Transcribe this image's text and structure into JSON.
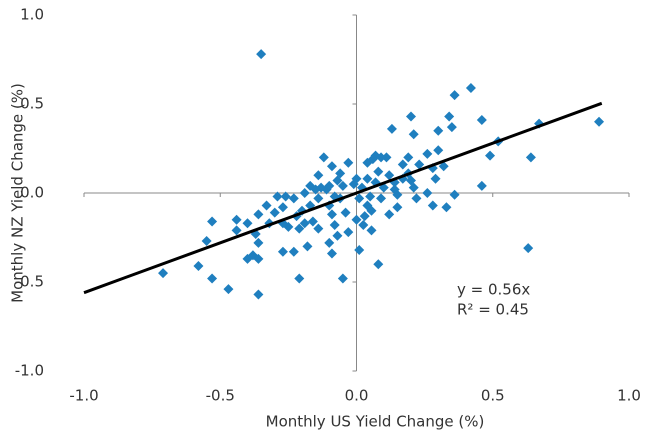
{
  "chart_data": {
    "type": "scatter",
    "x_label": "Monthly US Yield Change (%)",
    "y_label": "Monthly NZ Yield Change (%)",
    "xlim": [
      -1,
      1
    ],
    "ylim": [
      -1,
      1
    ],
    "xticks": [
      {
        "value": -1,
        "label": "-1.0"
      },
      {
        "value": -0.5,
        "label": "-0.5"
      },
      {
        "value": 0,
        "label": "0.0"
      },
      {
        "value": 0.5,
        "label": "0.5"
      },
      {
        "value": 1,
        "label": "1.0"
      }
    ],
    "yticks": [
      {
        "value": -1,
        "label": "-1.0"
      },
      {
        "value": -0.5,
        "label": "-0.5"
      },
      {
        "value": 0,
        "label": "0.0"
      },
      {
        "value": 0.5,
        "label": "0.5"
      },
      {
        "value": 1,
        "label": "1.0"
      }
    ],
    "grid": false,
    "series": [
      {
        "color": "#1f7fbf",
        "x": [
          -0.35,
          0.89,
          0.67,
          0.42,
          0.36,
          0.46,
          0.35,
          0.34,
          0.3,
          0.2,
          0.21,
          0.13,
          0.52,
          0.49,
          0.64,
          0.63,
          0.46,
          0.36,
          0.33,
          0.28,
          0.3,
          0.32,
          0.26,
          0.23,
          0.19,
          0.17,
          0.11,
          0.09,
          0.07,
          0.06,
          0.04,
          0.08,
          0.12,
          0.14,
          0.17,
          0.2,
          0.21,
          0.15,
          0.15,
          0.1,
          0.07,
          0.05,
          0.04,
          0.055,
          0.03,
          0.025,
          0.01,
          0.08,
          0.02,
          0.0,
          -0.03,
          -0.05,
          -0.07,
          -0.08,
          -0.1,
          -0.09,
          -0.08,
          -0.04,
          -0.07,
          -0.05,
          -0.09,
          -0.12,
          -0.09,
          -0.14,
          -0.13,
          -0.15,
          -0.17,
          -0.19,
          -0.17,
          -0.2,
          -0.22,
          -0.21,
          -0.25,
          -0.27,
          -0.27,
          -0.29,
          -0.3,
          -0.33,
          -0.32,
          -0.36,
          -0.37,
          -0.36,
          -0.38,
          -0.36,
          -0.4,
          -0.36,
          -0.47,
          -0.53,
          -0.58,
          -0.71,
          -0.55,
          -0.53,
          -0.44,
          -0.44,
          -0.4,
          -0.27,
          -0.23,
          -0.21,
          -0.18,
          -0.26,
          -0.23,
          -0.14,
          -0.11,
          -0.1,
          -0.01,
          -0.06,
          0.01,
          0.09,
          0.12,
          0.22,
          0.26,
          0.0,
          -0.03,
          0.055,
          -0.14,
          -0.16,
          -0.19,
          -0.1,
          -0.06,
          0.04,
          0.14,
          0.19,
          0.28,
          0.29
        ],
        "y": [
          0.78,
          0.4,
          0.39,
          0.59,
          0.55,
          0.41,
          0.37,
          0.43,
          0.35,
          0.43,
          0.33,
          0.36,
          0.29,
          0.21,
          0.2,
          -0.31,
          0.04,
          -0.01,
          -0.08,
          -0.07,
          0.24,
          0.15,
          0.22,
          0.16,
          0.2,
          0.16,
          0.2,
          0.2,
          0.21,
          0.19,
          0.17,
          0.12,
          0.1,
          0.06,
          0.08,
          0.07,
          0.03,
          -0.01,
          -0.08,
          0.03,
          0.06,
          -0.02,
          -0.07,
          -0.1,
          -0.13,
          -0.18,
          -0.32,
          -0.4,
          0.03,
          0.08,
          0.17,
          0.04,
          0.07,
          -0.02,
          -0.07,
          -0.12,
          -0.18,
          -0.11,
          -0.24,
          -0.48,
          -0.34,
          0.2,
          0.15,
          0.1,
          0.03,
          0.02,
          0.04,
          0.0,
          -0.07,
          -0.1,
          -0.13,
          -0.2,
          -0.19,
          -0.17,
          -0.08,
          -0.02,
          -0.11,
          -0.07,
          -0.17,
          -0.12,
          -0.23,
          -0.28,
          -0.35,
          -0.37,
          -0.37,
          -0.57,
          -0.54,
          -0.48,
          -0.41,
          -0.45,
          -0.27,
          -0.16,
          -0.15,
          -0.21,
          -0.17,
          -0.33,
          -0.33,
          -0.48,
          -0.3,
          -0.02,
          -0.03,
          -0.03,
          0.02,
          0.04,
          0.05,
          0.11,
          -0.03,
          -0.03,
          -0.12,
          -0.03,
          0.0,
          -0.15,
          -0.22,
          -0.21,
          -0.2,
          -0.16,
          -0.17,
          -0.28,
          -0.03,
          0.08,
          0.02,
          0.11,
          0.14,
          0.08
        ]
      }
    ],
    "trendline": {
      "slope": 0.56,
      "x_range": [
        -1,
        0.9
      ],
      "color": "#000000"
    },
    "annotations": [
      "y = 0.56x",
      "R² = 0.45"
    ]
  }
}
